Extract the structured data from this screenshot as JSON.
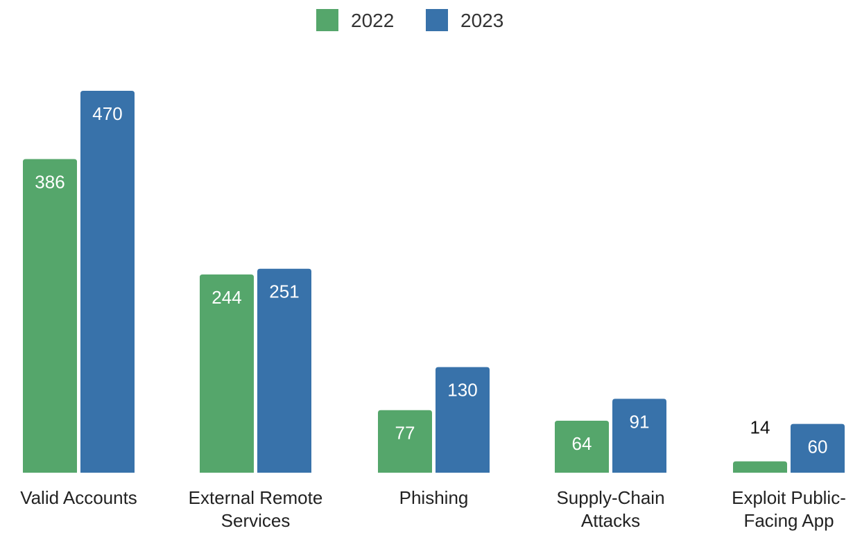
{
  "chart_data": {
    "type": "bar",
    "title": "",
    "xlabel": "",
    "ylabel": "",
    "ylim": [
      0,
      470
    ],
    "grid": false,
    "legend_position": "top-center",
    "categories": [
      [
        "Valid Accounts"
      ],
      [
        "External Remote",
        "Services"
      ],
      [
        "Phishing"
      ],
      [
        "Supply-Chain",
        "Attacks"
      ],
      [
        "Exploit Public-",
        "Facing App"
      ]
    ],
    "series": [
      {
        "name": "2022",
        "color": "#55a66b",
        "values": [
          386,
          244,
          77,
          64,
          14
        ]
      },
      {
        "name": "2023",
        "color": "#3872aa",
        "values": [
          470,
          251,
          130,
          91,
          60
        ]
      }
    ]
  }
}
